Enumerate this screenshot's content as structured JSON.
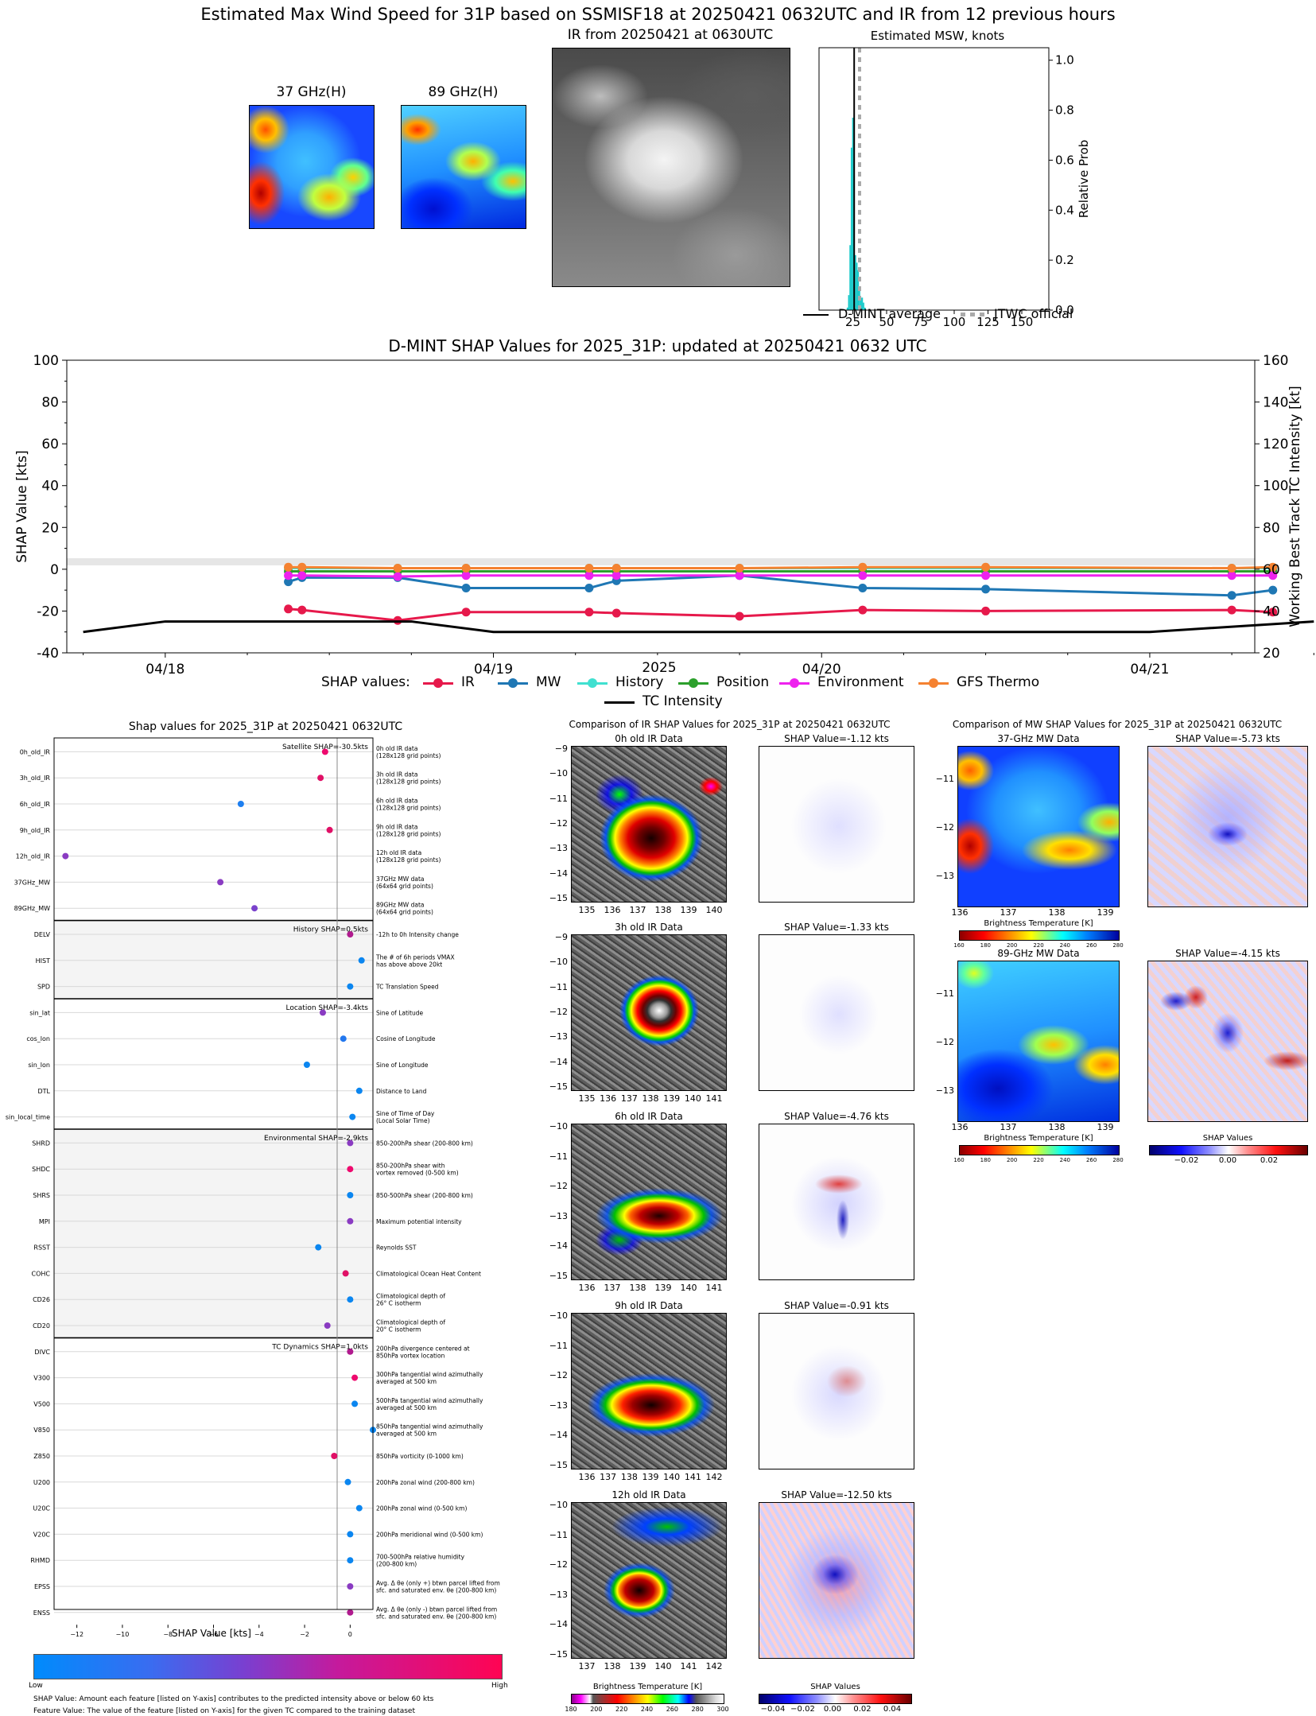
{
  "header": {
    "main_title": "Estimated Max Wind Speed for 31P based on SSMISF18 at 20250421 0632UTC and IR from 12 previous hours",
    "mw37_title": "37 GHz(H)",
    "mw89_title": "89 GHz(H)",
    "ir_title": "IR from 20250421 at 0630UTC"
  },
  "colors": {
    "ir": "#e6194b",
    "mw": "#1f77b4",
    "history": "#40e0d0",
    "position": "#2ca02c",
    "environment": "#ee22ee",
    "gfs": "#f58231",
    "intensity": "#000000",
    "hist": "#17c9c9",
    "dmint": "#000000",
    "jtwc": "#aaaaaa"
  },
  "chart_data": [
    {
      "type": "bar",
      "title": "Estimated MSW, knots",
      "ylabel": "Relative Prob",
      "xlim": [
        0,
        170
      ],
      "ylim": [
        0,
        1.05
      ],
      "xticks": [
        "25",
        "50",
        "75",
        "100",
        "125",
        "150"
      ],
      "yticks": [
        "0.0",
        "0.2",
        "0.4",
        "0.6",
        "0.8",
        "1.0"
      ],
      "x": [
        21,
        22,
        23,
        24,
        25,
        26,
        27,
        28,
        29,
        30,
        31,
        32,
        33,
        34
      ],
      "values": [
        0.01,
        0.06,
        0.26,
        0.65,
        0.77,
        0.54,
        0.22,
        0.19,
        0.16,
        0.08,
        0.05,
        0.05,
        0.03,
        0.01
      ],
      "dmint_average": 26,
      "jtwc_official": 30,
      "legend": [
        "D-MINT average",
        "JTWC official"
      ]
    },
    {
      "type": "line",
      "title": "D-MINT SHAP Values for 2025_31P: updated at 20250421 0632 UTC",
      "xlabel": "2025",
      "ylabel": "SHAP Value [kts]",
      "ylabel_right": "Working Best Track TC Intensity [kt]",
      "ylim": [
        -40,
        100
      ],
      "ylim_right": [
        20,
        160
      ],
      "x_ticks": [
        "04/18",
        "04/19",
        "04/20",
        "04/21"
      ],
      "y_ticks": [
        "-40",
        "-20",
        "0",
        "20",
        "40",
        "60",
        "80",
        "100"
      ],
      "y_ticks_right": [
        "20",
        "40",
        "60",
        "80",
        "100",
        "120",
        "140",
        "160"
      ],
      "legend_prefix": "SHAP values:",
      "x": [
        "04/18 09:00",
        "04/18 10:00",
        "04/18 17:00",
        "04/18 22:00",
        "04/19 07:00",
        "04/19 09:00",
        "04/19 18:00",
        "04/20 03:00",
        "04/20 12:00",
        "04/21 06:00",
        "04/21 09:00"
      ],
      "series": [
        {
          "name": "IR",
          "values": [
            -19,
            -19.5,
            -24.5,
            -20.5,
            -20.5,
            -21,
            -22.5,
            -19.5,
            -20,
            -19.5,
            -20.5
          ]
        },
        {
          "name": "MW",
          "values": [
            -6,
            -4,
            -4,
            -9,
            -9,
            -5.5,
            -3,
            -9,
            -9.5,
            -12.5,
            -10
          ]
        },
        {
          "name": "History",
          "values": [
            0.5,
            0.5,
            0.5,
            0.5,
            0.5,
            0.5,
            0.5,
            0.5,
            0.5,
            0.5,
            0.5
          ]
        },
        {
          "name": "Position",
          "values": [
            -1,
            -1,
            -1,
            -1,
            -1,
            -1,
            -1,
            -1,
            -1,
            -1,
            -1
          ]
        },
        {
          "name": "Environment",
          "values": [
            -3,
            -3,
            -3.5,
            -3,
            -3,
            -3,
            -3,
            -3,
            -3,
            -3,
            -3
          ]
        },
        {
          "name": "GFS Thermo",
          "values": [
            1,
            1,
            0.5,
            0.5,
            0.5,
            0.5,
            0.5,
            1,
            1,
            0.5,
            1
          ]
        },
        {
          "name": "TC Intensity",
          "axis": "right",
          "x": [
            "04/17 18:00",
            "04/18 00:00",
            "04/18 12:00",
            "04/18 18:00",
            "04/19 00:00",
            "04/21 00:00",
            "04/21 12:00"
          ],
          "values": [
            30,
            35,
            35,
            35,
            30,
            30,
            35
          ]
        }
      ]
    },
    {
      "type": "scatter",
      "title": "Shap values for 2025_31P at 20250421 0632UTC",
      "xlabel": "SHAP Value [kts]",
      "xlim": [
        -13,
        1
      ],
      "xticks": [
        "-12",
        "-10",
        "-8",
        "-6",
        "-4",
        "-2",
        "0"
      ],
      "groups": [
        {
          "label": "Satellite SHAP=-30.5kts",
          "features": [
            {
              "name": "0h_old_IR",
              "desc": "0h old IR data\n(128x128 grid points)",
              "value": -1.1,
              "color": "#ee0a6e"
            },
            {
              "name": "3h_old_IR",
              "desc": "3h old IR data\n(128x128 grid points)",
              "value": -1.3,
              "color": "#e01066"
            },
            {
              "name": "6h_old_IR",
              "desc": "6h old IR data\n(128x128 grid points)",
              "value": -4.8,
              "color": "#1e7ff0"
            },
            {
              "name": "9h_old_IR",
              "desc": "9h old IR data\n(128x128 grid points)",
              "value": -0.9,
              "color": "#e01066"
            },
            {
              "name": "12h_old_IR",
              "desc": "12h old IR data\n(128x128 grid points)",
              "value": -12.5,
              "color": "#8a3bc2"
            },
            {
              "name": "37GHz_MW",
              "desc": "37GHz MW data\n(64x64 grid points)",
              "value": -5.7,
              "color": "#8a3bc2"
            },
            {
              "name": "89GHz_MW",
              "desc": "89GHz MW data\n(64x64 grid points)",
              "value": -4.2,
              "color": "#7a42cc"
            }
          ]
        },
        {
          "label": "History SHAP=0.5kts",
          "features": [
            {
              "name": "DELV",
              "desc": "-12h to 0h Intensity change",
              "value": 0.0,
              "color": "#b01a8e"
            },
            {
              "name": "HIST",
              "desc": "The # of 6h periods VMAX\nhas above above 20kt",
              "value": 0.5,
              "color": "#0b86f0"
            },
            {
              "name": "SPD",
              "desc": "TC Translation Speed",
              "value": 0.0,
              "color": "#0b86f0"
            }
          ]
        },
        {
          "label": "Location SHAP=-3.4kts",
          "features": [
            {
              "name": "sin_lat",
              "desc": "Sine of Latitude",
              "value": -1.2,
              "color": "#8a3bc2"
            },
            {
              "name": "cos_lon",
              "desc": "Cosine of Longitude",
              "value": -0.3,
              "color": "#2277ee"
            },
            {
              "name": "sin_lon",
              "desc": "Sine of Longitude",
              "value": -1.9,
              "color": "#0b86f0"
            },
            {
              "name": "DTL",
              "desc": "Distance to Land",
              "value": 0.4,
              "color": "#0b86f0"
            },
            {
              "name": "sin_local_time",
              "desc": "Sine of Time of Day\n(Local Solar Time)",
              "value": 0.1,
              "color": "#0b86f0"
            }
          ]
        },
        {
          "label": "Environmental SHAP=-2.9kts",
          "features": [
            {
              "name": "SHRD",
              "desc": "850-200hPa shear (200-800 km)",
              "value": 0.0,
              "color": "#8a3bc2"
            },
            {
              "name": "SHDC",
              "desc": "850-200hPa shear with\nvortex removed (0-500 km)",
              "value": 0.0,
              "color": "#ee0a6e"
            },
            {
              "name": "SHRS",
              "desc": "850-500hPa shear (200-800 km)",
              "value": 0.0,
              "color": "#0b86f0"
            },
            {
              "name": "MPI",
              "desc": "Maximum potential intensity",
              "value": 0.0,
              "color": "#8a3bc2"
            },
            {
              "name": "RSST",
              "desc": "Reynolds SST",
              "value": -1.4,
              "color": "#0b86f0"
            },
            {
              "name": "COHC",
              "desc": "Climatological Ocean Heat Content",
              "value": -0.2,
              "color": "#e01066"
            },
            {
              "name": "CD26",
              "desc": "Climatological depth of\n26° C isotherm",
              "value": 0.0,
              "color": "#0b86f0"
            },
            {
              "name": "CD20",
              "desc": "Climatological depth of\n20° C isotherm",
              "value": -1.0,
              "color": "#8a3bc2"
            }
          ]
        },
        {
          "label": "TC Dynamics SHAP=1.0kts",
          "features": [
            {
              "name": "DIVC",
              "desc": "200hPa divergence centered at\n850hPa vortex location",
              "value": 0.0,
              "color": "#b01a8e"
            },
            {
              "name": "V300",
              "desc": "300hPa tangential wind azimuthally\naveraged at 500 km",
              "value": 0.2,
              "color": "#ee0a6e"
            },
            {
              "name": "V500",
              "desc": "500hPa tangential wind azimuthally\naveraged at 500 km",
              "value": 0.2,
              "color": "#0b86f0"
            },
            {
              "name": "V850",
              "desc": "850hPa tangential wind azimuthally\naveraged at 500 km",
              "value": 1.0,
              "color": "#0b86f0"
            },
            {
              "name": "Z850",
              "desc": "850hPa vorticity (0-1000 km)",
              "value": -0.7,
              "color": "#e01066"
            },
            {
              "name": "U200",
              "desc": "200hPa zonal wind (200-800 km)",
              "value": -0.1,
              "color": "#0b86f0"
            },
            {
              "name": "U20C",
              "desc": "200hPa zonal wind (0-500 km)",
              "value": 0.4,
              "color": "#0b86f0"
            },
            {
              "name": "V20C",
              "desc": "200hPa meridional wind (0-500 km)",
              "value": 0.0,
              "color": "#0b86f0"
            },
            {
              "name": "RHMD",
              "desc": "700-500hPa relative humidity\n(200-800 km)",
              "value": 0.0,
              "color": "#0b86f0"
            },
            {
              "name": "EPSS",
              "desc": "Avg. Δ θe (only +) btwn parcel lifted from\nsfc. and saturated env. θe (200-800 km)",
              "value": 0.0,
              "color": "#8a3bc2"
            },
            {
              "name": "ENSS",
              "desc": "Avg. Δ θe (only -) btwn parcel lifted from\nsfc. and saturated env. θe (200-800 km)",
              "value": 0.0,
              "color": "#b01a8e"
            }
          ]
        }
      ],
      "colorbar_low": "Low",
      "colorbar_high": "High",
      "note1": "SHAP Value: Amount each feature [listed on Y-axis] contributes to the predicted intensity above or below 60 kts",
      "note2": "Feature Value: The value of the feature [listed on Y-axis] for the given TC compared to the training dataset"
    }
  ],
  "ir_comparison": {
    "title": "Comparison of IR SHAP Values for 2025_31P at 20250421 0632UTC",
    "panels": [
      {
        "title": "0h old IR Data",
        "shap": "SHAP Value=-1.12 kts",
        "yticks": [
          "−9",
          "−10",
          "−11",
          "−12",
          "−13",
          "−14",
          "−15"
        ],
        "xticks": [
          "135",
          "136",
          "137",
          "138",
          "139",
          "140"
        ]
      },
      {
        "title": "3h old IR Data",
        "shap": "SHAP Value=-1.33 kts",
        "yticks": [
          "−9",
          "−10",
          "−11",
          "−12",
          "−13",
          "−14",
          "−15"
        ],
        "xticks": [
          "135",
          "136",
          "137",
          "138",
          "139",
          "140",
          "141"
        ]
      },
      {
        "title": "6h old IR Data",
        "shap": "SHAP Value=-4.76 kts",
        "yticks": [
          "−10",
          "−11",
          "−12",
          "−13",
          "−14",
          "−15"
        ],
        "xticks": [
          "136",
          "137",
          "138",
          "139",
          "140",
          "141"
        ]
      },
      {
        "title": "9h old IR Data",
        "shap": "SHAP Value=-0.91 kts",
        "yticks": [
          "−10",
          "−11",
          "−12",
          "−13",
          "−14",
          "−15"
        ],
        "xticks": [
          "136",
          "137",
          "138",
          "139",
          "140",
          "141",
          "142"
        ]
      },
      {
        "title": "12h old IR Data",
        "shap": "SHAP Value=-12.50 kts",
        "yticks": [
          "−10",
          "−11",
          "−12",
          "−13",
          "−14",
          "−15"
        ],
        "xticks": [
          "137",
          "138",
          "139",
          "140",
          "141",
          "142"
        ]
      }
    ],
    "bt_label": "Brightness Temperature [K]",
    "bt_ticks": [
      "180",
      "200",
      "220",
      "240",
      "260",
      "280",
      "300"
    ],
    "shap_label": "SHAP Values",
    "shap_ticks": [
      "−0.04",
      "−0.02",
      "0.00",
      "0.02",
      "0.04"
    ]
  },
  "mw_comparison": {
    "title": "Comparison of MW SHAP Values for 2025_31P at 20250421 0632UTC",
    "panels": [
      {
        "title": "37-GHz MW Data",
        "shap": "SHAP Value=-5.73 kts"
      },
      {
        "title": "89-GHz MW Data",
        "shap": "SHAP Value=-4.15 kts"
      }
    ],
    "yticks": [
      "−11",
      "−12",
      "−13"
    ],
    "xticks": [
      "136",
      "137",
      "138",
      "139"
    ],
    "bt_label": "Brightness Temperature [K]",
    "bt_ticks": [
      "160",
      "180",
      "200",
      "220",
      "240",
      "260",
      "280"
    ],
    "shap_label": "SHAP Values",
    "shap_ticks": [
      "−0.02",
      "0.00",
      "0.02"
    ]
  }
}
